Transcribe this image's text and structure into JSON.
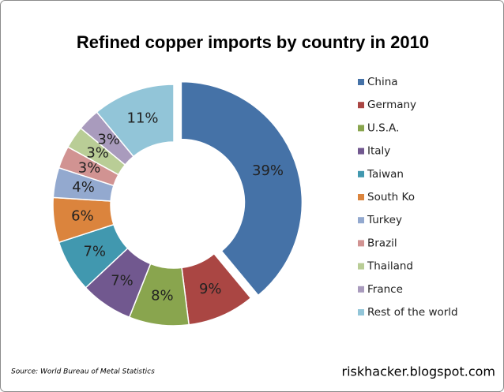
{
  "chart_data": {
    "type": "donut",
    "title": "Refined copper imports by country in 2010",
    "categories": [
      "China",
      "Germany",
      "U.S.A.",
      "Italy",
      "Taiwan",
      "South Ko",
      "Turkey",
      "Brazil",
      "Thailand",
      "France",
      "Rest of the world"
    ],
    "values": [
      39,
      9,
      8,
      7,
      7,
      6,
      4,
      3,
      3,
      3,
      11
    ],
    "value_labels": [
      "39%",
      "9%",
      "8%",
      "7%",
      "7%",
      "6%",
      "4%",
      "3%",
      "3%",
      "3%",
      "11%"
    ],
    "colors": [
      "#4572a7",
      "#aa4643",
      "#89a54e",
      "#71588f",
      "#4198af",
      "#db843d",
      "#93a9cf",
      "#d19392",
      "#b9cd96",
      "#a99bbd",
      "#92c5d8"
    ],
    "legend": "right",
    "source": "Source: World Bureau of Metal Statistics",
    "credit": "riskhacker.blogspot.com"
  }
}
